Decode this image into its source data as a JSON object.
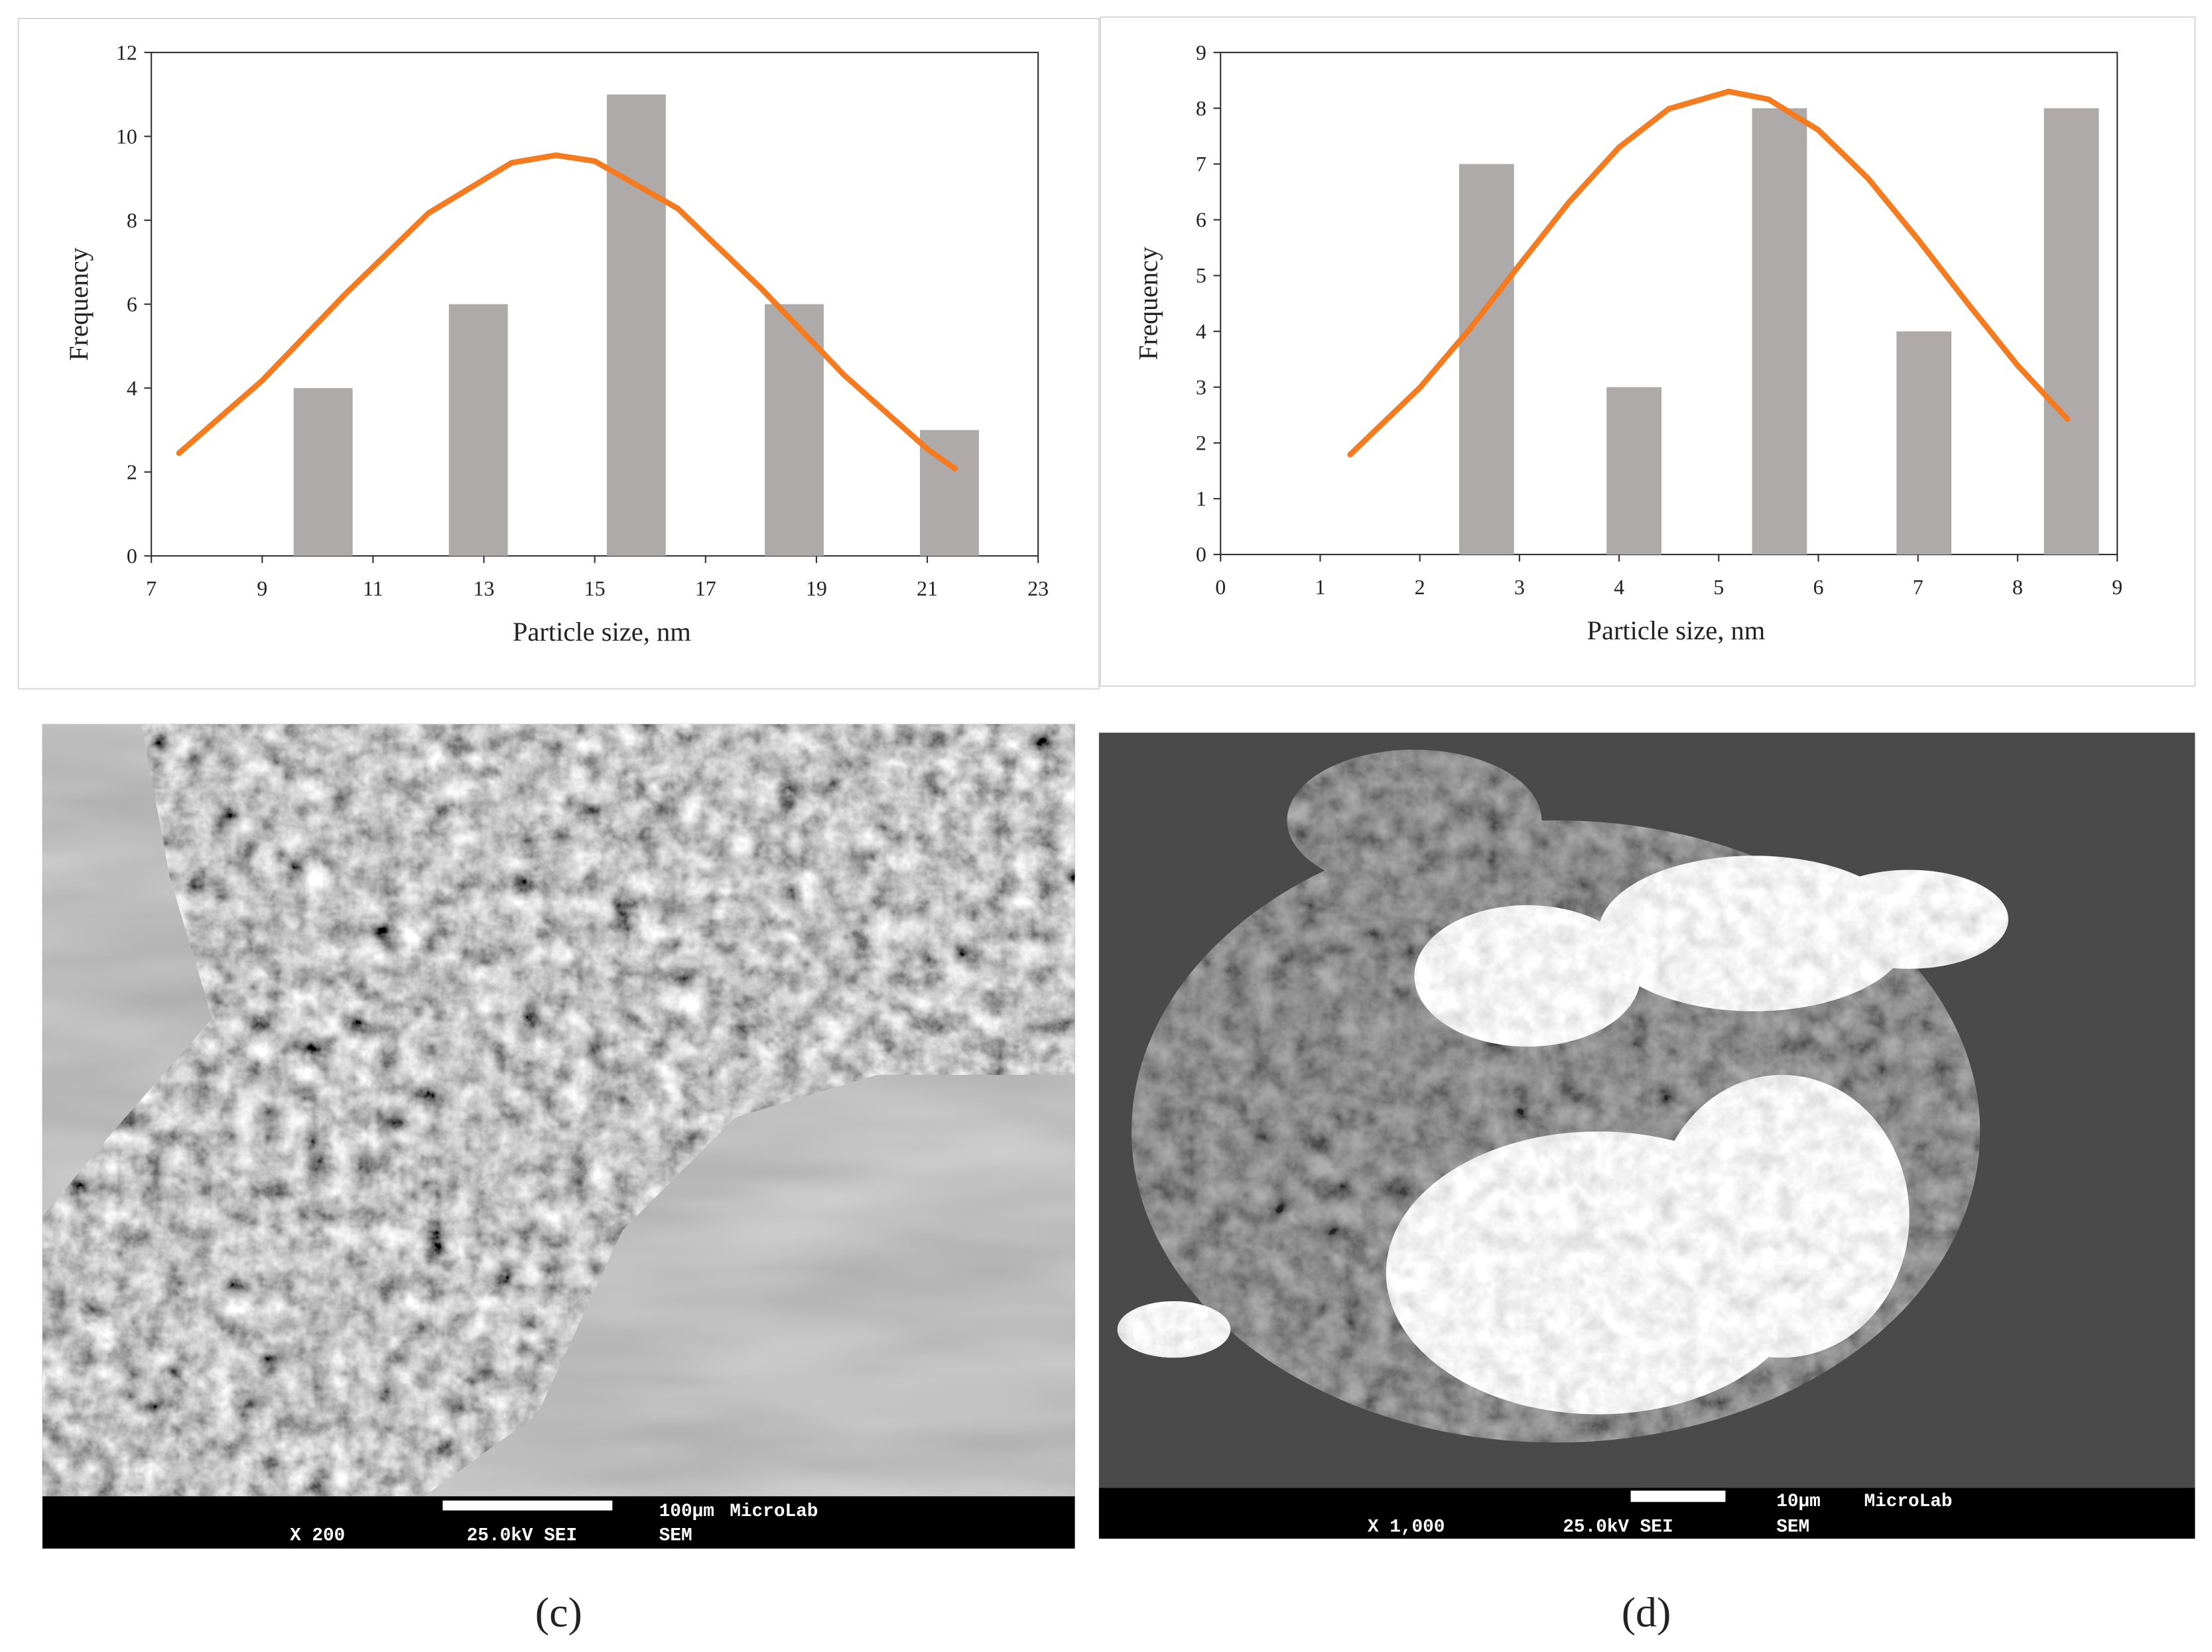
{
  "chart_data": [
    {
      "type": "bar",
      "xlabel": "Particle size, nm",
      "ylabel": "Frequency",
      "xlim": [
        7,
        23
      ],
      "xticks": [
        7,
        9,
        11,
        13,
        15,
        17,
        19,
        21,
        23
      ],
      "ylim": [
        0,
        12
      ],
      "yticks": [
        0,
        2,
        4,
        6,
        8,
        10,
        12
      ],
      "series": [
        {
          "type": "bar",
          "color": "#aeaaaa",
          "x": [
            10.1,
            12.9,
            15.75,
            18.6,
            21.4
          ],
          "values": [
            4,
            6,
            11,
            6,
            3
          ]
        },
        {
          "type": "line",
          "color": "#f47b20",
          "x": [
            7.5,
            9,
            10.5,
            12,
            13.5,
            14.3,
            15,
            16.5,
            18,
            19.5,
            21,
            21.5
          ],
          "values": [
            2.45,
            4.18,
            6.24,
            8.17,
            9.37,
            9.55,
            9.41,
            8.28,
            6.38,
            4.31,
            2.55,
            2.08
          ]
        }
      ]
    },
    {
      "type": "bar",
      "xlabel": "Particle size, nm",
      "ylabel": "Frequency",
      "xlim": [
        0,
        9
      ],
      "xticks": [
        0,
        1,
        2,
        3,
        4,
        5,
        6,
        7,
        8,
        9
      ],
      "ylim": [
        0,
        9
      ],
      "yticks": [
        0,
        1,
        2,
        3,
        4,
        5,
        6,
        7,
        8,
        9
      ],
      "series": [
        {
          "type": "bar",
          "color": "#aeaaaa",
          "x": [
            2.67,
            4.15,
            5.61,
            7.06,
            8.54
          ],
          "values": [
            7,
            3,
            8,
            4,
            8
          ]
        },
        {
          "type": "line",
          "color": "#f47b20",
          "x": [
            1.3,
            2,
            2.5,
            3,
            3.5,
            4,
            4.5,
            5.1,
            5.5,
            6,
            6.5,
            7,
            7.5,
            8,
            8.5
          ],
          "values": [
            1.79,
            2.99,
            4.04,
            5.19,
            6.32,
            7.3,
            7.99,
            8.3,
            8.16,
            7.61,
            6.74,
            5.65,
            4.5,
            3.39,
            2.43
          ]
        }
      ]
    }
  ],
  "images": [
    {
      "caption": "(c)",
      "magnification": "X 200",
      "voltage": "25.0kV SEI",
      "scale": "100μm",
      "lab": "MicroLab",
      "mode": "SEM"
    },
    {
      "caption": "(d)",
      "magnification": "X 1,000",
      "voltage": "25.0kV SEI",
      "scale": "10μm",
      "lab": "MicroLab",
      "mode": "SEM"
    }
  ]
}
